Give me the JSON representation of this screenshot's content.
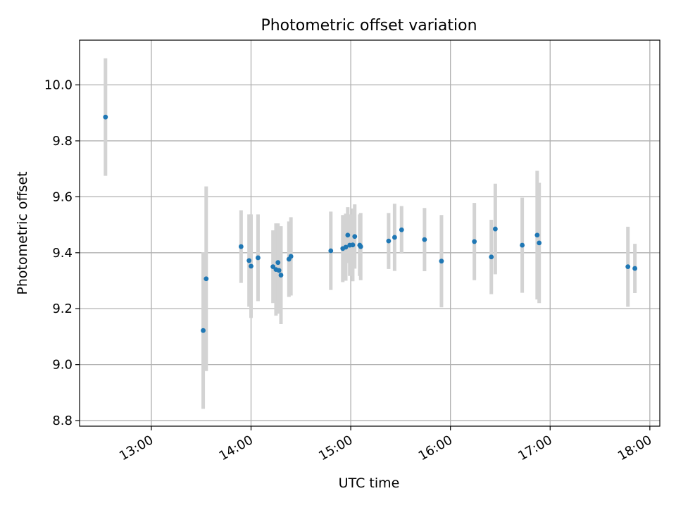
{
  "colors": {
    "point": "#1f77b4",
    "errorbar": "#d3d3d3",
    "grid": "#b0b0b0",
    "axis": "#000000",
    "background": "#ffffff"
  },
  "chart_data": {
    "type": "scatter",
    "title": "Photometric offset variation",
    "xlabel": "UTC time",
    "ylabel": "Photometric offset",
    "x_unit": "hours (UTC)",
    "xlim": [
      12.28,
      18.1
    ],
    "ylim": [
      8.78,
      10.16
    ],
    "grid": true,
    "x_ticks": [
      {
        "value": 13.0,
        "label": "13:00"
      },
      {
        "value": 14.0,
        "label": "14:00"
      },
      {
        "value": 15.0,
        "label": "15:00"
      },
      {
        "value": 16.0,
        "label": "16:00"
      },
      {
        "value": 17.0,
        "label": "17:00"
      },
      {
        "value": 18.0,
        "label": "18:00"
      }
    ],
    "y_ticks": [
      {
        "value": 8.8,
        "label": "8.8"
      },
      {
        "value": 9.0,
        "label": "9.0"
      },
      {
        "value": 9.2,
        "label": "9.2"
      },
      {
        "value": 9.4,
        "label": "9.4"
      },
      {
        "value": 9.6,
        "label": "9.6"
      },
      {
        "value": 9.8,
        "label": "9.8"
      },
      {
        "value": 10.0,
        "label": "10.0"
      }
    ],
    "points": [
      {
        "x": 12.54,
        "y": 9.885,
        "err": 0.21
      },
      {
        "x": 13.52,
        "y": 9.122,
        "err": 0.28
      },
      {
        "x": 13.55,
        "y": 9.307,
        "err": 0.33
      },
      {
        "x": 13.9,
        "y": 9.422,
        "err": 0.13
      },
      {
        "x": 13.98,
        "y": 9.372,
        "err": 0.165
      },
      {
        "x": 14.0,
        "y": 9.352,
        "err": 0.185
      },
      {
        "x": 14.07,
        "y": 9.382,
        "err": 0.155
      },
      {
        "x": 14.22,
        "y": 9.35,
        "err": 0.13
      },
      {
        "x": 14.25,
        "y": 9.34,
        "err": 0.165
      },
      {
        "x": 14.27,
        "y": 9.365,
        "err": 0.14
      },
      {
        "x": 14.28,
        "y": 9.337,
        "err": 0.155
      },
      {
        "x": 14.3,
        "y": 9.32,
        "err": 0.175
      },
      {
        "x": 14.38,
        "y": 9.377,
        "err": 0.135
      },
      {
        "x": 14.4,
        "y": 9.387,
        "err": 0.14
      },
      {
        "x": 14.8,
        "y": 9.407,
        "err": 0.14
      },
      {
        "x": 14.92,
        "y": 9.415,
        "err": 0.12
      },
      {
        "x": 14.95,
        "y": 9.42,
        "err": 0.12
      },
      {
        "x": 14.97,
        "y": 9.463,
        "err": 0.1
      },
      {
        "x": 14.99,
        "y": 9.427,
        "err": 0.11
      },
      {
        "x": 15.02,
        "y": 9.428,
        "err": 0.13
      },
      {
        "x": 15.04,
        "y": 9.458,
        "err": 0.115
      },
      {
        "x": 15.09,
        "y": 9.427,
        "err": 0.11
      },
      {
        "x": 15.1,
        "y": 9.422,
        "err": 0.12
      },
      {
        "x": 15.38,
        "y": 9.442,
        "err": 0.1
      },
      {
        "x": 15.44,
        "y": 9.455,
        "err": 0.12
      },
      {
        "x": 15.51,
        "y": 9.482,
        "err": 0.085
      },
      {
        "x": 15.74,
        "y": 9.447,
        "err": 0.113
      },
      {
        "x": 15.91,
        "y": 9.37,
        "err": 0.165
      },
      {
        "x": 16.24,
        "y": 9.44,
        "err": 0.138
      },
      {
        "x": 16.41,
        "y": 9.385,
        "err": 0.133
      },
      {
        "x": 16.45,
        "y": 9.485,
        "err": 0.162
      },
      {
        "x": 16.72,
        "y": 9.427,
        "err": 0.17
      },
      {
        "x": 16.87,
        "y": 9.463,
        "err": 0.23
      },
      {
        "x": 16.89,
        "y": 9.435,
        "err": 0.215
      },
      {
        "x": 17.78,
        "y": 9.35,
        "err": 0.143
      },
      {
        "x": 17.85,
        "y": 9.344,
        "err": 0.088
      }
    ]
  }
}
